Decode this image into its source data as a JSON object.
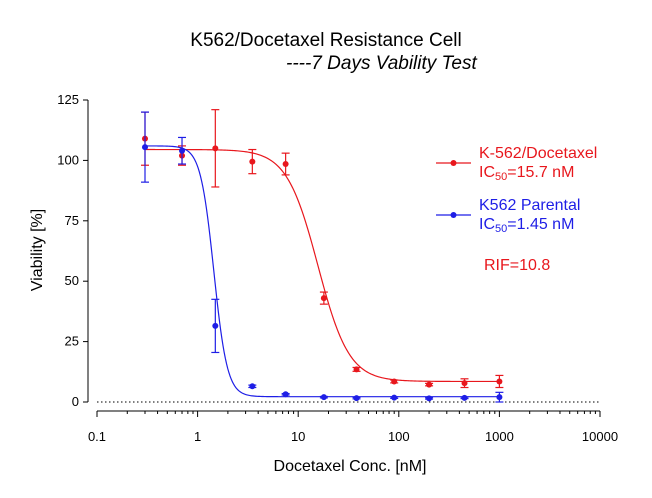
{
  "chart_data": {
    "type": "scatter",
    "title": "K562/Docetaxel Resistance Cell",
    "subtitle": "----7 Days Vability Test",
    "xlabel": "Docetaxel Conc. [nM]",
    "ylabel": "Viability [%]",
    "xscale": "log",
    "xlim": [
      0.1,
      10000
    ],
    "ylim": [
      0,
      125
    ],
    "x_ticks": [
      0.1,
      1,
      10,
      100,
      1000,
      10000
    ],
    "x_tick_labels": [
      "0.1",
      "1",
      "10",
      "100",
      "1000",
      "10000"
    ],
    "y_ticks": [
      0,
      25,
      50,
      75,
      100,
      125
    ],
    "y_tick_labels": [
      "0",
      "25",
      "50",
      "75",
      "100",
      "125"
    ],
    "zero_line": "dotted",
    "legend_position": "right",
    "series": [
      {
        "name": "K-562/Docetaxel",
        "ic50_label": "IC",
        "ic50_sub": "50",
        "ic50_value": "=15.7 nM",
        "ic50": 15.7,
        "color": "#e8171d",
        "fit": {
          "top": 104.5,
          "bottom": 8.5,
          "hill": 2.8
        },
        "points": [
          {
            "x": 0.3,
            "y": 109,
            "err": 11
          },
          {
            "x": 0.7,
            "y": 102,
            "err": 4
          },
          {
            "x": 1.5,
            "y": 105,
            "err": 16
          },
          {
            "x": 3.5,
            "y": 99.5,
            "err": 5
          },
          {
            "x": 7.5,
            "y": 98.5,
            "err": 4.5
          },
          {
            "x": 18,
            "y": 43,
            "err": 2.5
          },
          {
            "x": 38,
            "y": 13.5,
            "err": 0.8
          },
          {
            "x": 90,
            "y": 8.5,
            "err": 0.6
          },
          {
            "x": 200,
            "y": 7.2,
            "err": 0.5
          },
          {
            "x": 450,
            "y": 7.8,
            "err": 1.8
          },
          {
            "x": 1000,
            "y": 8.5,
            "err": 2.5
          }
        ]
      },
      {
        "name": "K562 Parental",
        "ic50_label": "IC",
        "ic50_sub": "50",
        "ic50_value": "=1.45 nM",
        "ic50": 1.45,
        "color": "#1e1ee6",
        "fit": {
          "top": 106,
          "bottom": 2.2,
          "hill": 6.5
        },
        "points": [
          {
            "x": 0.3,
            "y": 105.5,
            "err": 14.5
          },
          {
            "x": 0.7,
            "y": 104,
            "err": 5.5
          },
          {
            "x": 1.5,
            "y": 31.5,
            "err": 11
          },
          {
            "x": 3.5,
            "y": 6.5,
            "err": 0.5
          },
          {
            "x": 7.5,
            "y": 3.2,
            "err": 0.3
          },
          {
            "x": 18,
            "y": 2.0,
            "err": 0.3
          },
          {
            "x": 38,
            "y": 1.6,
            "err": 0.3
          },
          {
            "x": 90,
            "y": 1.8,
            "err": 0.3
          },
          {
            "x": 200,
            "y": 1.5,
            "err": 0.3
          },
          {
            "x": 450,
            "y": 1.7,
            "err": 0.3
          },
          {
            "x": 1000,
            "y": 2.0,
            "err": 2.0
          }
        ]
      }
    ],
    "annotation": "RIF=10.8"
  }
}
